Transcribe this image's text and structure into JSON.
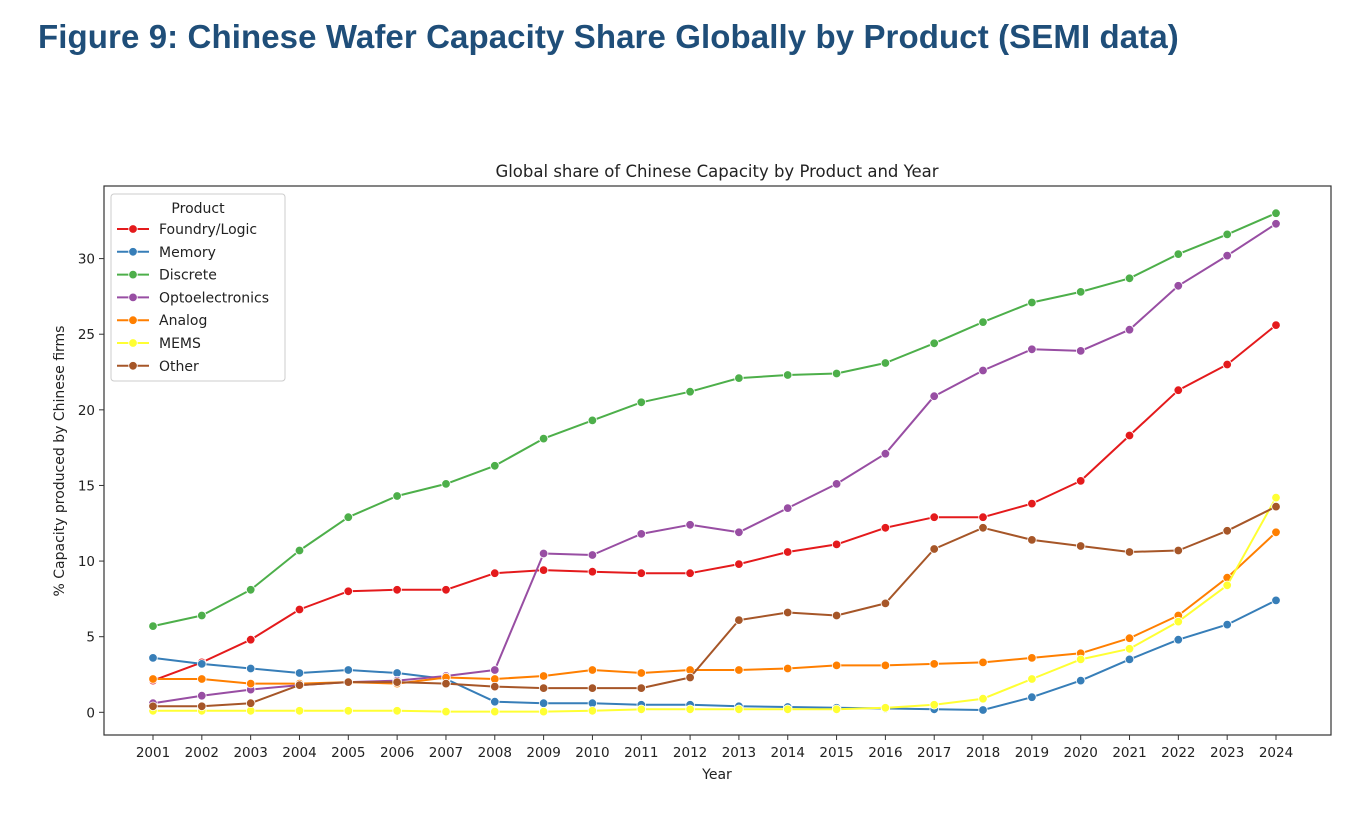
{
  "page": {
    "heading": "Figure 9: Chinese Wafer Capacity Share Globally by Product (SEMI data)"
  },
  "chart_data": {
    "type": "line",
    "title": "Global share of Chinese Capacity by Product and Year",
    "xlabel": "Year",
    "ylabel": "% Capacity produced by Chinese firms",
    "ylim": [
      -1.5,
      34.8
    ],
    "yticks": [
      0,
      5,
      10,
      15,
      20,
      25,
      30
    ],
    "grid": false,
    "legend_position": "top-left",
    "legend_title": "Product",
    "categories": [
      "2001",
      "2002",
      "2003",
      "2004",
      "2005",
      "2006",
      "2007",
      "2008",
      "2009",
      "2010",
      "2011",
      "2012",
      "2013",
      "2014",
      "2015",
      "2016",
      "2017",
      "2018",
      "2019",
      "2020",
      "2021",
      "2022",
      "2023",
      "2024"
    ],
    "series": [
      {
        "name": "Foundry/Logic",
        "color": "#e41a1c",
        "values": [
          2.1,
          3.3,
          4.8,
          6.8,
          8.0,
          8.1,
          8.1,
          9.2,
          9.4,
          9.3,
          9.2,
          9.2,
          9.8,
          10.6,
          11.1,
          12.2,
          12.9,
          12.9,
          13.8,
          15.3,
          18.3,
          21.3,
          23.0,
          25.6
        ]
      },
      {
        "name": "Memory",
        "color": "#377eb8",
        "values": [
          3.6,
          3.2,
          2.9,
          2.6,
          2.8,
          2.6,
          2.2,
          0.7,
          0.6,
          0.6,
          0.5,
          0.5,
          0.4,
          0.35,
          0.3,
          0.25,
          0.2,
          0.15,
          1.0,
          2.1,
          3.5,
          4.8,
          5.8,
          7.4
        ]
      },
      {
        "name": "Discrete",
        "color": "#4daf4a",
        "values": [
          5.7,
          6.4,
          8.1,
          10.7,
          12.9,
          14.3,
          15.1,
          16.3,
          18.1,
          19.3,
          20.5,
          21.2,
          22.1,
          22.3,
          22.4,
          23.1,
          24.4,
          25.8,
          27.1,
          27.8,
          28.7,
          30.3,
          31.6,
          33.0
        ]
      },
      {
        "name": "Optoelectronics",
        "color": "#984ea3",
        "values": [
          0.6,
          1.1,
          1.5,
          1.8,
          2.0,
          2.1,
          2.4,
          2.8,
          10.5,
          10.4,
          11.8,
          12.4,
          11.9,
          13.5,
          15.1,
          17.1,
          20.9,
          22.6,
          24.0,
          23.9,
          25.3,
          28.2,
          30.2,
          32.3
        ]
      },
      {
        "name": "Analog",
        "color": "#ff7f00",
        "values": [
          2.2,
          2.2,
          1.9,
          1.9,
          2.0,
          1.9,
          2.3,
          2.2,
          2.4,
          2.8,
          2.6,
          2.8,
          2.8,
          2.9,
          3.1,
          3.1,
          3.2,
          3.3,
          3.6,
          3.9,
          4.9,
          6.4,
          8.9,
          11.9
        ]
      },
      {
        "name": "MEMS",
        "color": "#ffff33",
        "values": [
          0.1,
          0.1,
          0.1,
          0.1,
          0.1,
          0.1,
          0.05,
          0.05,
          0.05,
          0.1,
          0.2,
          0.2,
          0.2,
          0.2,
          0.2,
          0.3,
          0.5,
          0.9,
          2.2,
          3.5,
          4.2,
          6.0,
          8.4,
          14.2
        ]
      },
      {
        "name": "Other",
        "color": "#a65628",
        "values": [
          0.4,
          0.4,
          0.6,
          1.8,
          2.0,
          2.0,
          1.9,
          1.7,
          1.6,
          1.6,
          1.6,
          2.3,
          6.1,
          6.6,
          6.4,
          7.2,
          10.8,
          12.2,
          11.4,
          11.0,
          10.6,
          10.7,
          12.0,
          13.6
        ]
      }
    ]
  }
}
